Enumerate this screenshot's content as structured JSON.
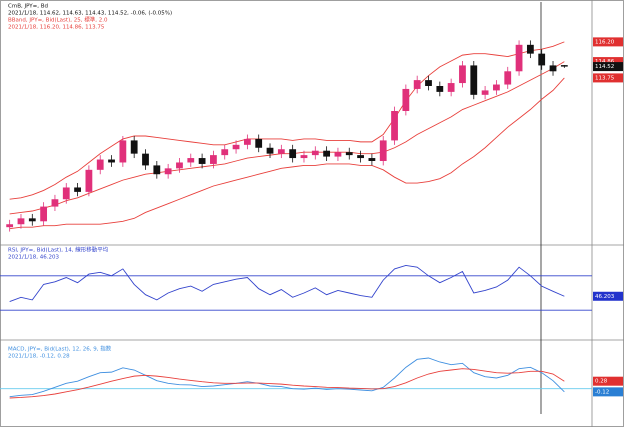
{
  "chart_data": [
    {
      "type": "candlestick",
      "title": "CmB, JPY=, Bd",
      "subtitle": "2021/1/18, 114.62, 114.63, 114.43, 114.52, -0.06, (-0.05%)",
      "up_color": "#e0307a",
      "down_color": "#111111",
      "open": [
        103.6,
        103.8,
        104.2,
        104.0,
        105.0,
        105.5,
        106.3,
        106.0,
        107.5,
        108.2,
        108.0,
        109.5,
        108.6,
        107.8,
        107.2,
        107.6,
        108.0,
        108.3,
        107.9,
        108.5,
        108.9,
        109.2,
        109.6,
        109.0,
        108.6,
        108.9,
        108.3,
        108.5,
        108.8,
        108.4,
        108.7,
        108.5,
        108.3,
        108.1,
        109.5,
        111.5,
        113.0,
        113.6,
        113.2,
        112.8,
        113.4,
        114.6,
        112.6,
        112.9,
        113.3,
        114.2,
        116.0,
        115.4,
        114.6,
        114.62
      ],
      "high": [
        104.1,
        104.5,
        104.5,
        105.3,
        105.8,
        106.6,
        106.6,
        107.8,
        108.5,
        108.5,
        109.8,
        109.8,
        108.9,
        108.1,
        107.9,
        108.3,
        108.6,
        108.6,
        108.8,
        109.2,
        109.5,
        109.9,
        109.9,
        109.3,
        109.2,
        109.2,
        108.8,
        109.1,
        109.1,
        109.0,
        109.0,
        108.8,
        108.6,
        109.8,
        111.8,
        113.3,
        113.9,
        113.9,
        113.5,
        113.7,
        114.9,
        114.9,
        113.2,
        113.6,
        114.5,
        116.3,
        116.3,
        115.7,
        114.9,
        114.63
      ],
      "low": [
        103.3,
        103.5,
        103.7,
        103.7,
        104.7,
        105.2,
        105.7,
        105.7,
        107.2,
        107.7,
        107.7,
        108.3,
        107.5,
        106.9,
        106.9,
        107.3,
        107.7,
        107.6,
        107.6,
        108.2,
        108.6,
        108.9,
        108.7,
        108.3,
        108.3,
        108.0,
        108.0,
        108.2,
        108.1,
        108.1,
        108.2,
        108.0,
        107.8,
        107.8,
        109.2,
        111.2,
        112.7,
        112.9,
        112.5,
        112.5,
        113.1,
        112.3,
        112.3,
        112.6,
        113.0,
        113.9,
        115.1,
        114.3,
        113.9,
        114.43
      ],
      "close": [
        103.8,
        104.2,
        104.0,
        105.0,
        105.5,
        106.3,
        106.0,
        107.5,
        108.2,
        108.0,
        109.5,
        108.6,
        107.8,
        107.2,
        107.6,
        108.0,
        108.3,
        107.9,
        108.5,
        108.9,
        109.2,
        109.6,
        109.0,
        108.6,
        108.9,
        108.3,
        108.5,
        108.8,
        108.4,
        108.7,
        108.5,
        108.3,
        108.1,
        109.5,
        111.5,
        113.0,
        113.6,
        113.2,
        112.8,
        113.4,
        114.6,
        112.6,
        112.9,
        113.3,
        114.2,
        116.0,
        115.4,
        114.6,
        114.2,
        114.52
      ],
      "overlay": {
        "title": "BBand, JPY=, Bid(Last), 25, 標準, 2.0",
        "subtitle": "2021/1/18, 116.20, 114.86, 113.75",
        "series": [
          {
            "color": "#e8403c",
            "values": [
              105.5,
              105.6,
              105.8,
              106.1,
              106.5,
              107.0,
              107.4,
              108.0,
              108.6,
              109.1,
              109.6,
              109.8,
              109.8,
              109.7,
              109.6,
              109.5,
              109.4,
              109.3,
              109.2,
              109.2,
              109.4,
              109.6,
              109.6,
              109.6,
              109.6,
              109.5,
              109.6,
              109.6,
              109.5,
              109.5,
              109.5,
              109.4,
              109.4,
              109.9,
              111.0,
              112.2,
              113.2,
              113.9,
              114.5,
              114.9,
              115.3,
              115.4,
              115.4,
              115.3,
              115.2,
              115.4,
              115.6,
              115.7,
              115.9,
              116.2
            ]
          },
          {
            "color": "#e8403c",
            "values": [
              104.5,
              104.6,
              104.7,
              104.9,
              105.1,
              105.4,
              105.6,
              105.9,
              106.2,
              106.5,
              106.8,
              107.0,
              107.2,
              107.3,
              107.4,
              107.5,
              107.6,
              107.7,
              107.8,
              107.9,
              108.1,
              108.3,
              108.4,
              108.5,
              108.6,
              108.6,
              108.7,
              108.7,
              108.7,
              108.7,
              108.7,
              108.6,
              108.6,
              108.7,
              109.0,
              109.4,
              109.9,
              110.3,
              110.7,
              111.1,
              111.6,
              111.9,
              112.2,
              112.5,
              112.8,
              113.2,
              113.6,
              114.0,
              114.4,
              114.86
            ]
          },
          {
            "color": "#e8403c",
            "values": [
              103.5,
              103.6,
              103.6,
              103.7,
              103.7,
              103.8,
              103.8,
              103.8,
              103.8,
              103.9,
              104.0,
              104.2,
              104.6,
              104.9,
              105.2,
              105.5,
              105.8,
              106.1,
              106.4,
              106.6,
              106.8,
              107.0,
              107.2,
              107.4,
              107.6,
              107.7,
              107.8,
              107.8,
              107.9,
              107.9,
              107.9,
              107.8,
              107.8,
              107.5,
              107.0,
              106.6,
              106.6,
              106.7,
              106.9,
              107.3,
              107.9,
              108.4,
              109.0,
              109.7,
              110.4,
              111.0,
              111.6,
              112.3,
              112.9,
              113.75
            ]
          }
        ]
      },
      "ylim": [
        103,
        116.6
      ],
      "tags": [
        {
          "value": 116.2,
          "label": "116.20",
          "color": "#e03030"
        },
        {
          "value": 114.86,
          "label": "114.86",
          "color": "#e03030"
        },
        {
          "value": 114.52,
          "label": "114.52",
          "color": "#111111"
        },
        {
          "value": 113.75,
          "label": "113.75",
          "color": "#e03030"
        }
      ]
    },
    {
      "type": "line",
      "title": "RSI, JPY=, Bid(Last), 14, 線形移動平均",
      "subtitle": "2021/1/18, 46.203",
      "series": [
        {
          "color": "#3344cc",
          "values": [
            40,
            45,
            42,
            60,
            63,
            68,
            62,
            72,
            74,
            70,
            78,
            60,
            48,
            42,
            50,
            55,
            58,
            52,
            60,
            63,
            66,
            68,
            55,
            48,
            54,
            45,
            50,
            56,
            48,
            53,
            50,
            47,
            45,
            65,
            78,
            82,
            80,
            70,
            62,
            68,
            75,
            50,
            53,
            57,
            65,
            80,
            70,
            58,
            52,
            46.203
          ]
        }
      ],
      "ylim": [
        0,
        100
      ],
      "levels": [
        30,
        70
      ],
      "level_color": "#3344cc",
      "tags": [
        {
          "value": 46.203,
          "label": "46.203",
          "color": "#2233cc"
        }
      ]
    },
    {
      "type": "line",
      "title": "MACD, JPY=, Bid(Last), 12, 26, 9, 指数",
      "subtitle": "2021/1/18, -0.12, 0.28",
      "series": [
        {
          "color": "#3f8fe0",
          "values": [
            -0.3,
            -0.25,
            -0.22,
            -0.1,
            0.05,
            0.2,
            0.28,
            0.45,
            0.6,
            0.62,
            0.78,
            0.7,
            0.5,
            0.3,
            0.2,
            0.15,
            0.14,
            0.08,
            0.1,
            0.15,
            0.2,
            0.26,
            0.2,
            0.1,
            0.08,
            0.0,
            -0.02,
            0.02,
            -0.03,
            0,
            -0.02,
            -0.05,
            -0.08,
            0.05,
            0.4,
            0.8,
            1.1,
            1.15,
            1.0,
            0.9,
            0.95,
            0.6,
            0.45,
            0.4,
            0.5,
            0.75,
            0.8,
            0.6,
            0.3,
            -0.12
          ]
        },
        {
          "color": "#e8403c",
          "values": [
            -0.35,
            -0.33,
            -0.3,
            -0.26,
            -0.2,
            -0.12,
            -0.04,
            0.06,
            0.17,
            0.28,
            0.38,
            0.47,
            0.5,
            0.47,
            0.42,
            0.36,
            0.31,
            0.26,
            0.22,
            0.2,
            0.2,
            0.21,
            0.21,
            0.19,
            0.17,
            0.13,
            0.1,
            0.08,
            0.05,
            0.04,
            0.02,
            0.01,
            -0.01,
            0,
            0.08,
            0.22,
            0.4,
            0.55,
            0.65,
            0.7,
            0.75,
            0.72,
            0.66,
            0.6,
            0.58,
            0.6,
            0.65,
            0.65,
            0.55,
            0.28
          ]
        }
      ],
      "ylim": [
        -0.8,
        1.6
      ],
      "levels": [
        0
      ],
      "level_color": "#66ccee",
      "tags": [
        {
          "value": 0.28,
          "label": "0.28",
          "color": "#e03030"
        },
        {
          "value": -0.12,
          "label": "-0.12",
          "color": "#2a7fd4"
        }
      ]
    }
  ]
}
